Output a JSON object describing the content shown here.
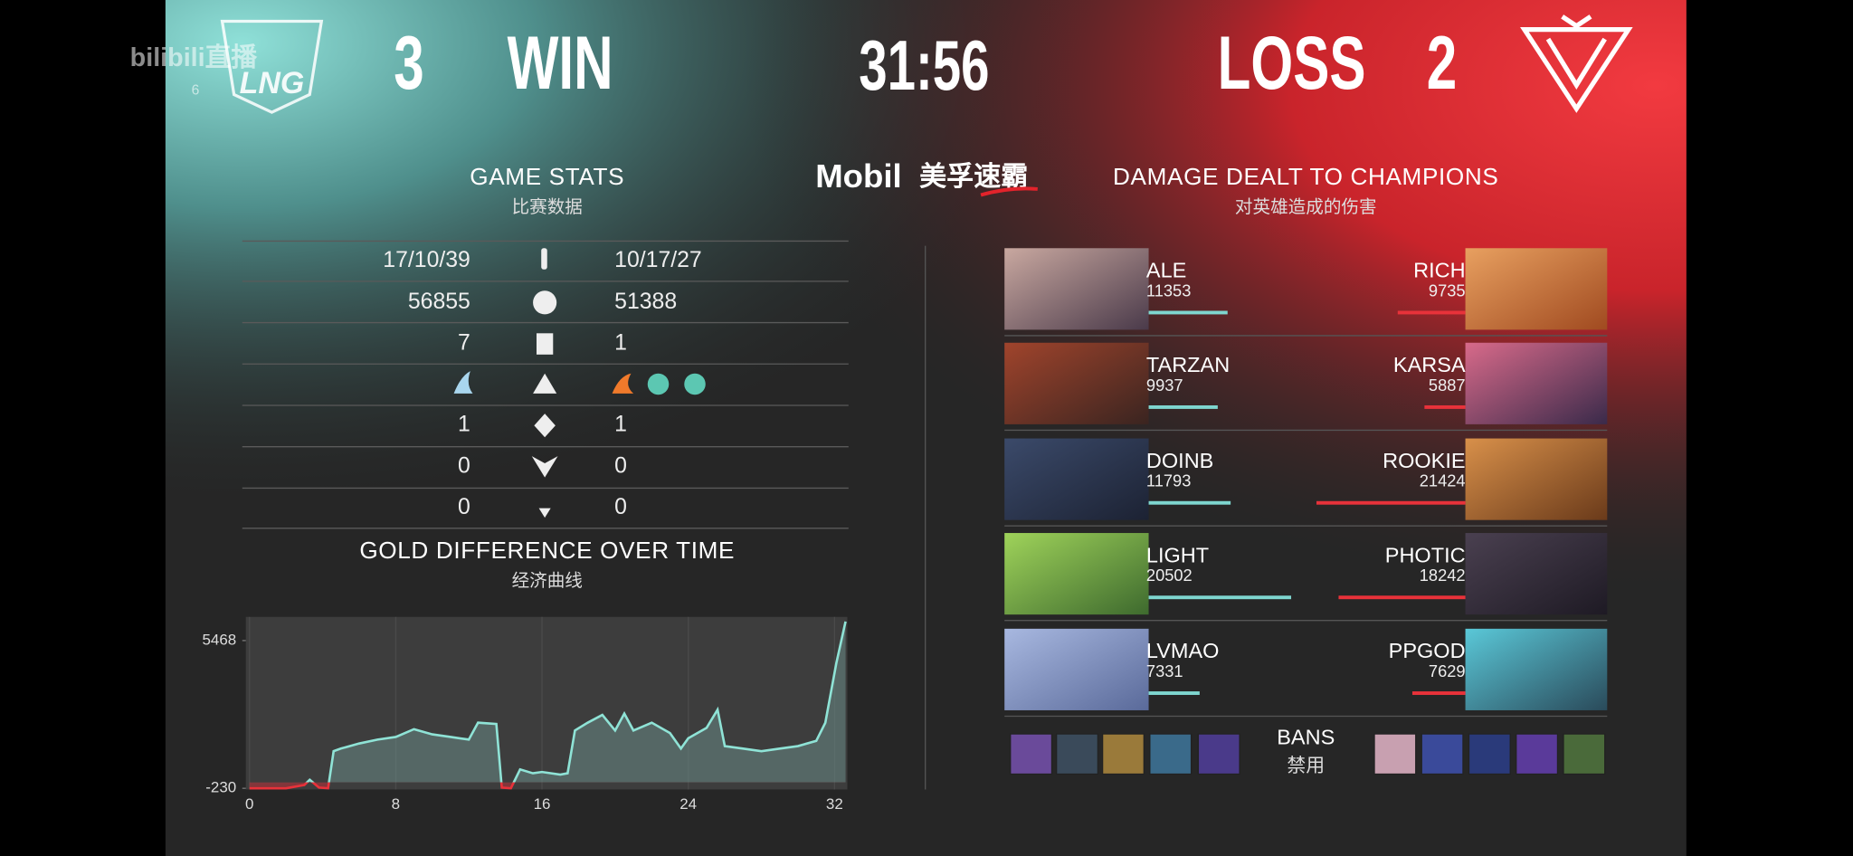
{
  "watermark": {
    "brand": "bilibili直播",
    "count": "6"
  },
  "scoreboard": {
    "left": {
      "logo_text": "LNG",
      "score": "3",
      "result": "WIN"
    },
    "time": "31:56",
    "right": {
      "result": "LOSS",
      "score": "2"
    }
  },
  "sponsor": {
    "brand": "Mobil",
    "local": "美孚速霸"
  },
  "game_stats": {
    "title": "GAME STATS",
    "subtitle": "比赛数据",
    "rows": [
      {
        "left": "17/10/39",
        "right": "10/17/27"
      },
      {
        "left": "56855",
        "right": "51388"
      },
      {
        "left": "7",
        "right": "1"
      },
      {
        "left": "1",
        "right": "1"
      },
      {
        "left": "0",
        "right": "0"
      },
      {
        "left": "0",
        "right": "0"
      }
    ]
  },
  "damage": {
    "title": "DAMAGE DEALT TO CHAMPIONS",
    "subtitle": "对英雄造成的伤害",
    "rows": [
      {
        "left": {
          "name": "ALE",
          "damage": 11353
        },
        "right": {
          "name": "RICH",
          "damage": 9735
        }
      },
      {
        "left": {
          "name": "TARZAN",
          "damage": 9937
        },
        "right": {
          "name": "KARSA",
          "damage": 5887
        }
      },
      {
        "left": {
          "name": "DOINB",
          "damage": 11793
        },
        "right": {
          "name": "ROOKIE",
          "damage": 21424
        }
      },
      {
        "left": {
          "name": "LIGHT",
          "damage": 20502
        },
        "right": {
          "name": "PHOTIC",
          "damage": 18242
        }
      },
      {
        "left": {
          "name": "LVMAO",
          "damage": 7331
        },
        "right": {
          "name": "PPGOD",
          "damage": 7629
        }
      }
    ]
  },
  "bans": {
    "title": "BANS",
    "subtitle": "禁用"
  },
  "gold_chart": {
    "type": "area",
    "title": "GOLD DIFFERENCE OVER TIME",
    "subtitle": "经济曲线",
    "x": [
      0,
      1,
      2,
      3,
      3.3,
      3.8,
      4.3,
      4.6,
      5,
      6,
      7,
      8,
      9,
      10,
      11,
      12,
      12.5,
      13.5,
      13.8,
      14.3,
      14.8,
      15.5,
      16,
      17,
      17.4,
      17.8,
      18.5,
      19.3,
      20,
      20.5,
      21,
      22,
      23,
      23.6,
      24,
      25,
      25.6,
      26,
      27,
      28,
      29,
      30,
      31,
      31.5,
      32.1,
      32.6
    ],
    "values": [
      -230,
      -230,
      -230,
      -100,
      100,
      -200,
      -230,
      1200,
      1300,
      1500,
      1650,
      1750,
      2050,
      1850,
      1750,
      1650,
      2300,
      2250,
      -200,
      -230,
      500,
      350,
      400,
      300,
      350,
      2000,
      2300,
      2600,
      2000,
      2650,
      2000,
      2300,
      1900,
      1300,
      1700,
      2100,
      2800,
      1400,
      1300,
      1200,
      1300,
      1400,
      1600,
      2300,
      4600,
      6200
    ],
    "xlim": [
      -0.2,
      32.7
    ],
    "ylim": [
      -275,
      6380
    ],
    "xticks": [
      0,
      8,
      16,
      24,
      32
    ],
    "yticks": [
      -230,
      5468
    ]
  }
}
